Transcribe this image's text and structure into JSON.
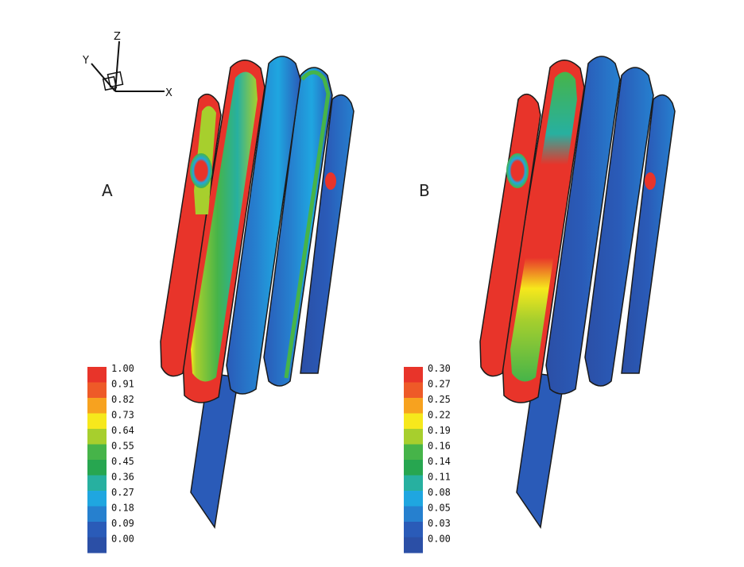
{
  "axes_triad": {
    "x": "X",
    "y": "Y",
    "z": "Z"
  },
  "panels": [
    {
      "label": "A",
      "legend": [
        "1.00",
        "0.91",
        "0.82",
        "0.73",
        "0.64",
        "0.55",
        "0.45",
        "0.36",
        "0.27",
        "0.18",
        "0.09",
        "0.00"
      ]
    },
    {
      "label": "B",
      "legend": [
        "0.30",
        "0.27",
        "0.25",
        "0.22",
        "0.19",
        "0.16",
        "0.14",
        "0.11",
        "0.08",
        "0.05",
        "0.03",
        "0.00"
      ]
    }
  ],
  "colormap": [
    "#e8342a",
    "#ee5a28",
    "#f7a21f",
    "#f6e81c",
    "#a7cf2d",
    "#46b449",
    "#27a650",
    "#27b0a0",
    "#1fa6e0",
    "#2680cf",
    "#2a5bb8",
    "#2b4fa6"
  ]
}
